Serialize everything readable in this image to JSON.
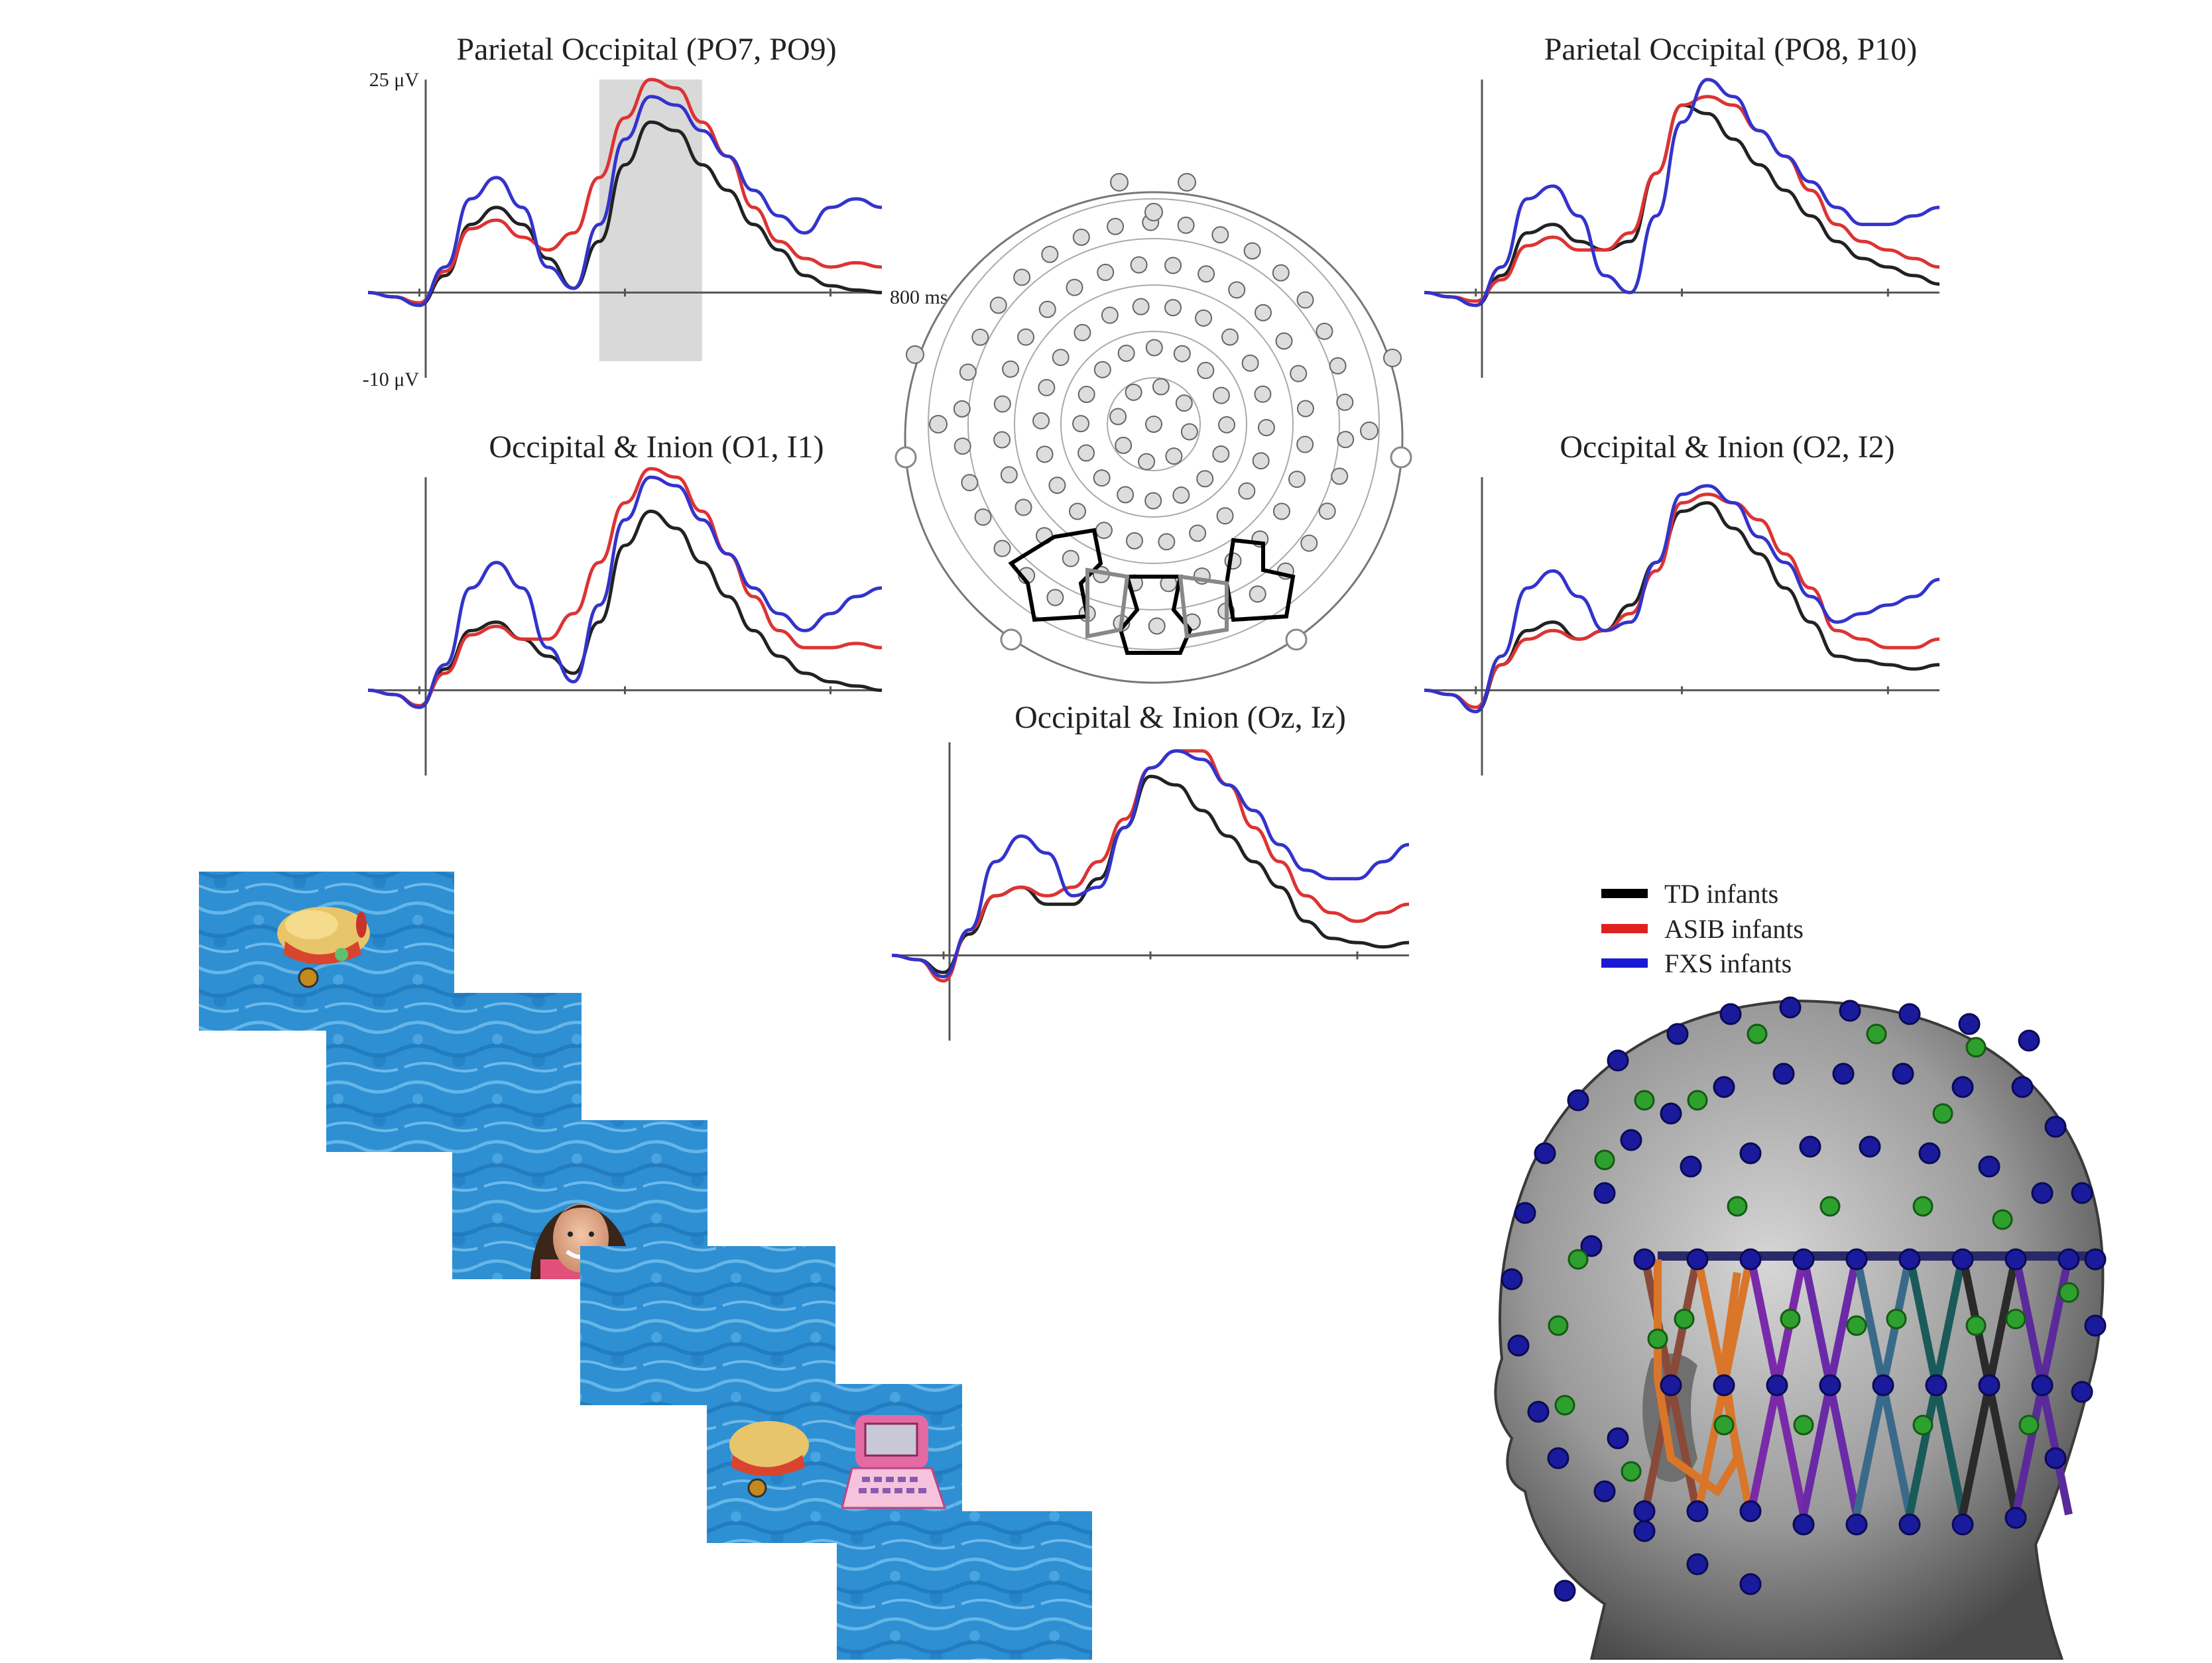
{
  "chart_data": [
    {
      "type": "line",
      "title": "Parietal Occipital (PO7, PO9)",
      "y_top_label": "25 μV",
      "y_bottom_label": "-10 μV",
      "x_end_label": "800 ms",
      "x": [
        -100,
        -50,
        0,
        50,
        100,
        150,
        200,
        250,
        300,
        350,
        400,
        450,
        500,
        550,
        600,
        650,
        700,
        750,
        800,
        850,
        900
      ],
      "ylim": [
        -10,
        25
      ],
      "xlim": [
        -100,
        900
      ],
      "highlight_window": [
        350,
        550
      ],
      "series": [
        {
          "name": "TD infants",
          "color": "#222222",
          "values": [
            0,
            -0.5,
            -1.5,
            2,
            8,
            10,
            8,
            4,
            0.5,
            6,
            15,
            20,
            19,
            15,
            12,
            8,
            5,
            2,
            0.8,
            0.3,
            0
          ]
        },
        {
          "name": "ASIB infants",
          "color": "#dd3333",
          "values": [
            0,
            -0.5,
            -1.2,
            2.5,
            7.5,
            8.5,
            6.5,
            5,
            7,
            13.5,
            20.5,
            25,
            24,
            20,
            16,
            10,
            6,
            4,
            3,
            3.5,
            3
          ]
        },
        {
          "name": "FXS infants",
          "color": "#3333cc",
          "values": [
            0,
            -0.5,
            -1.5,
            3,
            11,
            13.5,
            10,
            3,
            0.5,
            8,
            18,
            23,
            22,
            19,
            16,
            12,
            9,
            7,
            10,
            11,
            10
          ]
        }
      ]
    },
    {
      "type": "line",
      "title": "Parietal Occipital (PO8, P10)",
      "x": [
        -100,
        -50,
        0,
        50,
        100,
        150,
        200,
        250,
        300,
        350,
        400,
        450,
        500,
        550,
        600,
        650,
        700,
        750,
        800,
        850,
        900
      ],
      "ylim": [
        -10,
        25
      ],
      "xlim": [
        -100,
        900
      ],
      "series": [
        {
          "name": "TD infants",
          "color": "#222222",
          "values": [
            0,
            -0.5,
            -1.5,
            2,
            7,
            8,
            6,
            5,
            6,
            14,
            22,
            21,
            18,
            15,
            12,
            9,
            6,
            4,
            3,
            2,
            1
          ]
        },
        {
          "name": "ASIB infants",
          "color": "#dd3333",
          "values": [
            0,
            -0.5,
            -1,
            1.5,
            5.5,
            6.5,
            5,
            5,
            7,
            14,
            22,
            23,
            22,
            19,
            16,
            12,
            8,
            6,
            5,
            4,
            3
          ]
        },
        {
          "name": "FXS infants",
          "color": "#3333cc",
          "values": [
            0,
            -0.5,
            -1.5,
            3,
            11,
            12.5,
            9,
            2,
            0,
            9,
            20,
            25,
            23,
            19,
            16,
            13,
            10,
            8,
            8,
            9,
            10
          ]
        }
      ]
    },
    {
      "type": "line",
      "title": "Occipital & Inion (O1, I1)",
      "x": [
        -100,
        -50,
        0,
        50,
        100,
        150,
        200,
        250,
        300,
        350,
        400,
        450,
        500,
        550,
        600,
        650,
        700,
        750,
        800,
        850,
        900
      ],
      "ylim": [
        -10,
        25
      ],
      "xlim": [
        -100,
        900
      ],
      "series": [
        {
          "name": "TD infants",
          "color": "#222222",
          "values": [
            0,
            -0.5,
            -2,
            2.5,
            7,
            8,
            6,
            4,
            2,
            8,
            17,
            21,
            19,
            15,
            11,
            7,
            4,
            2,
            1,
            0.5,
            0
          ]
        },
        {
          "name": "ASIB infants",
          "color": "#dd3333",
          "values": [
            0,
            -0.5,
            -1.8,
            2,
            6.5,
            7.5,
            6,
            6,
            9,
            15,
            22,
            26,
            25,
            21,
            16,
            11,
            7,
            5,
            5,
            5.5,
            5
          ]
        },
        {
          "name": "FXS infants",
          "color": "#3333cc",
          "values": [
            0,
            -0.5,
            -2,
            3,
            12,
            15,
            12,
            5,
            1,
            10,
            20,
            25,
            24,
            20,
            16,
            12,
            9,
            7,
            9,
            11,
            12
          ]
        }
      ]
    },
    {
      "type": "line",
      "title": "Occipital & Inion (O2, I2)",
      "x": [
        -100,
        -50,
        0,
        50,
        100,
        150,
        200,
        250,
        300,
        350,
        400,
        450,
        500,
        550,
        600,
        650,
        700,
        750,
        800,
        850,
        900
      ],
      "ylim": [
        -10,
        25
      ],
      "xlim": [
        -100,
        900
      ],
      "series": [
        {
          "name": "TD infants",
          "color": "#222222",
          "values": [
            0,
            -0.5,
            -2.5,
            3,
            7,
            8,
            6,
            7,
            10,
            15,
            21,
            22,
            19,
            16,
            12,
            8,
            4,
            3.5,
            3,
            2.5,
            3
          ]
        },
        {
          "name": "ASIB infants",
          "color": "#dd3333",
          "values": [
            0,
            -0.5,
            -2,
            3,
            6,
            7,
            6,
            7,
            9,
            14,
            22,
            23,
            22,
            20,
            16,
            12,
            7,
            6,
            5,
            5,
            6
          ]
        },
        {
          "name": "FXS infants",
          "color": "#3333cc",
          "values": [
            0,
            -0.5,
            -2.5,
            4,
            12,
            14,
            11,
            7,
            8,
            15,
            23,
            24,
            22,
            18,
            15,
            11,
            8,
            9,
            10,
            11,
            13
          ]
        }
      ]
    },
    {
      "type": "line",
      "title": "Occipital & Inion (Oz, Iz)",
      "x": [
        -100,
        -50,
        0,
        50,
        100,
        150,
        200,
        250,
        300,
        350,
        400,
        450,
        500,
        550,
        600,
        650,
        700,
        750,
        800,
        850,
        900
      ],
      "ylim": [
        -10,
        25
      ],
      "xlim": [
        -100,
        900
      ],
      "series": [
        {
          "name": "TD infants",
          "color": "#222222",
          "values": [
            0,
            -0.5,
            -2,
            2.5,
            7,
            8,
            6,
            6,
            9,
            15,
            21,
            20,
            17,
            14,
            11,
            8,
            4,
            2,
            1.5,
            1,
            1.5
          ]
        },
        {
          "name": "ASIB infants",
          "color": "#dd3333",
          "values": [
            0,
            -0.5,
            -3,
            3,
            7,
            8,
            7,
            8,
            11,
            16,
            22,
            24,
            24,
            20,
            15,
            11,
            7,
            5,
            4,
            5,
            6
          ]
        },
        {
          "name": "FXS infants",
          "color": "#3333cc",
          "values": [
            0,
            -0.5,
            -2.5,
            3,
            11,
            14,
            12,
            7,
            8,
            15,
            22,
            24,
            23,
            20,
            17,
            13,
            10,
            9,
            9,
            11,
            13
          ]
        }
      ]
    }
  ],
  "legend": {
    "items": [
      {
        "label": "TD infants",
        "color": "#000000"
      },
      {
        "label": "ASIB infants",
        "color": "#e02020"
      },
      {
        "label": "FXS infants",
        "color": "#1a1ad6"
      }
    ]
  },
  "colors": {
    "highlight": "#d9d9d9",
    "water": "#2f8fd0",
    "head": "#8c8c8c",
    "electrode_blue": "#1a1a9c",
    "electrode_green": "#2ea02e"
  }
}
